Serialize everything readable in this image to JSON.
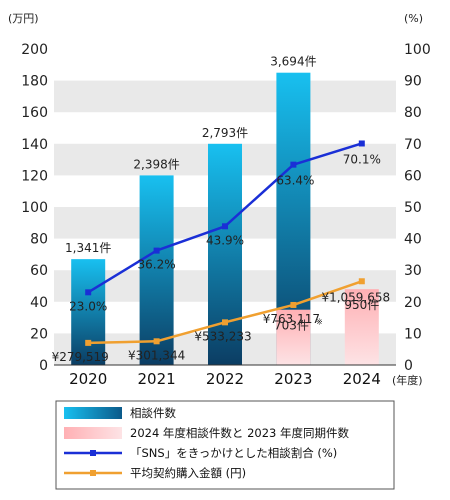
{
  "chart_data": {
    "type": "bar",
    "categories": [
      "2020",
      "2021",
      "2022",
      "2023",
      "2024"
    ],
    "left_axis": {
      "unit": "(万円)",
      "ylim": [
        0,
        200
      ],
      "ticks": [
        "0",
        "20",
        "40",
        "60",
        "80",
        "100",
        "120",
        "140",
        "160",
        "180",
        "200"
      ]
    },
    "right_axis": {
      "unit": "(%)",
      "ylim": [
        0,
        100
      ],
      "ticks": [
        "0",
        "10",
        "20",
        "30",
        "40",
        "50",
        "60",
        "70",
        "80",
        "90",
        "100"
      ]
    },
    "x_unit": "(年度)",
    "series": [
      {
        "name": "相談件数",
        "type": "bar",
        "axis": "left",
        "values": [
          67,
          120,
          140,
          185,
          null
        ],
        "labels": [
          "1,341件",
          "2,398件",
          "2,793件",
          "3,694件",
          ""
        ],
        "color_top": "#18c0f0",
        "color_bottom": "#0b3d63"
      },
      {
        "name": "2024 年度相談件数と 2023 年度同期件数",
        "type": "bar",
        "axis": "left",
        "values": [
          null,
          null,
          null,
          35,
          48
        ],
        "labels": [
          "",
          "",
          "",
          "703件",
          "950件"
        ],
        "label_mark": "※",
        "color_top": "#ffb0b4",
        "color_bottom": "#fde3e5"
      },
      {
        "name": "「SNS」をきっかけとした相談割合 (%)",
        "type": "line",
        "axis": "right",
        "values": [
          23.0,
          36.2,
          43.9,
          63.4,
          70.1
        ],
        "labels": [
          "23.0%",
          "36.2%",
          "43.9%",
          "63.4%",
          "70.1%"
        ],
        "color": "#1a2fd6"
      },
      {
        "name": "平均契約購入金額 (円)",
        "type": "line",
        "axis": "left",
        "values": [
          14,
          15,
          27,
          38,
          53
        ],
        "labels": [
          "¥279,519",
          "¥301,344",
          "¥533,233",
          "¥763,117",
          "¥1,059,658"
        ],
        "color": "#f0a030"
      }
    ],
    "grid": "horizontal bands",
    "legend_position": "bottom"
  }
}
